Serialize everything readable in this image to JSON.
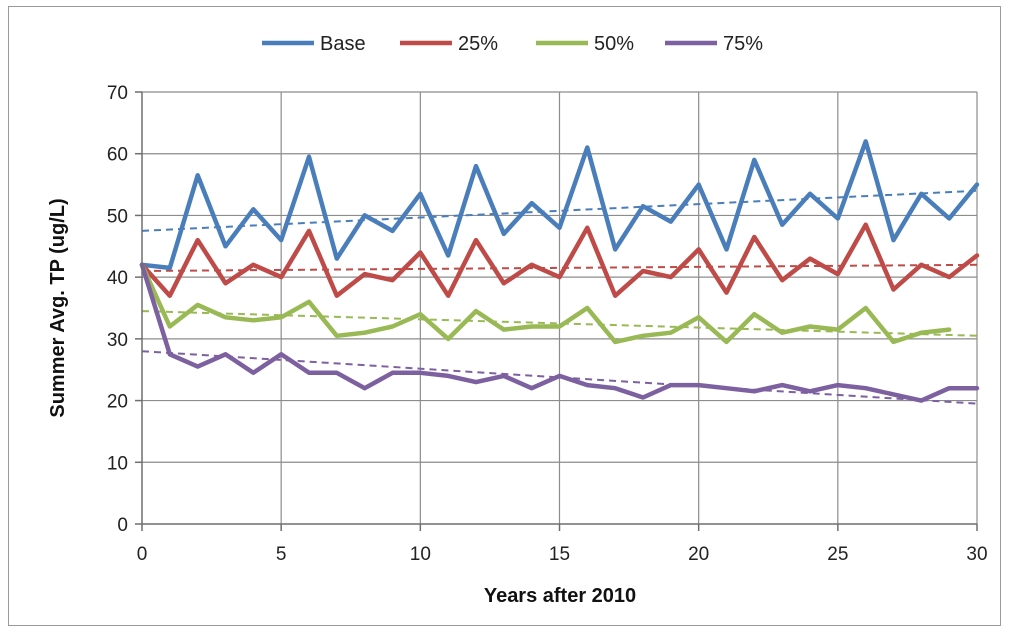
{
  "chart_data": {
    "type": "line",
    "title": "",
    "xlabel": "Years after 2010",
    "ylabel": "Summer Avg. TP (ug/L)",
    "xlim": [
      0,
      30
    ],
    "ylim": [
      0,
      70
    ],
    "xticks": [
      0,
      5,
      10,
      15,
      20,
      25,
      30
    ],
    "yticks": [
      0,
      10,
      20,
      30,
      40,
      50,
      60,
      70
    ],
    "grid": true,
    "legend_position": "top",
    "series": [
      {
        "name": "Base",
        "color": "#4a7ebb",
        "x": [
          0,
          1,
          2,
          3,
          4,
          5,
          6,
          7,
          8,
          9,
          10,
          11,
          12,
          13,
          14,
          15,
          16,
          17,
          18,
          19,
          20,
          21,
          22,
          23,
          24,
          25,
          26,
          27,
          28,
          29,
          30
        ],
        "values": [
          42,
          41.5,
          56.5,
          45,
          51,
          46,
          59.5,
          43,
          50,
          47.5,
          53.5,
          43.5,
          58,
          47,
          52,
          48,
          61,
          44.5,
          51.5,
          49,
          55,
          44.5,
          59,
          48.5,
          53.5,
          49.5,
          62,
          46,
          53.5,
          49.5,
          55
        ],
        "trend": [
          47.5,
          54
        ]
      },
      {
        "name": "25%",
        "color": "#be4b48",
        "x": [
          0,
          1,
          2,
          3,
          4,
          5,
          6,
          7,
          8,
          9,
          10,
          11,
          12,
          13,
          14,
          15,
          16,
          17,
          18,
          19,
          20,
          21,
          22,
          23,
          24,
          25,
          26,
          27,
          28,
          29,
          30
        ],
        "values": [
          42,
          37,
          46,
          39,
          42,
          40,
          47.5,
          37,
          40.5,
          39.5,
          44,
          37,
          46,
          39,
          42,
          40,
          48,
          37,
          41,
          40,
          44.5,
          37.5,
          46.5,
          39.5,
          43,
          40.5,
          48.5,
          38,
          42,
          40,
          43.5
        ],
        "trend": [
          41,
          42
        ]
      },
      {
        "name": "50%",
        "color": "#98b954",
        "x": [
          0,
          1,
          2,
          3,
          4,
          5,
          6,
          7,
          8,
          9,
          10,
          11,
          12,
          13,
          14,
          15,
          16,
          17,
          18,
          19,
          20,
          21,
          22,
          23,
          24,
          25,
          26,
          27,
          28,
          29
        ],
        "values": [
          42,
          32,
          35.5,
          33.5,
          33,
          33.5,
          36,
          30.5,
          31,
          32,
          34,
          30,
          34.5,
          31.5,
          32,
          32,
          35,
          29.5,
          30.5,
          31,
          33.5,
          29.5,
          34,
          31,
          32,
          31.5,
          35,
          29.5,
          31,
          31.5
        ],
        "trend": [
          34.5,
          30.5
        ]
      },
      {
        "name": "75%",
        "color": "#7d60a0",
        "x": [
          0,
          1,
          2,
          3,
          4,
          5,
          6,
          7,
          8,
          9,
          10,
          11,
          12,
          13,
          14,
          15,
          16,
          17,
          18,
          19,
          20,
          21,
          22,
          23,
          24,
          25,
          26,
          27,
          28,
          29,
          30
        ],
        "values": [
          42,
          27.5,
          25.5,
          27.5,
          24.5,
          27.5,
          24.5,
          24.5,
          22,
          24.5,
          24.5,
          24,
          23,
          24,
          22,
          24,
          22.5,
          22,
          20.5,
          22.5,
          22.5,
          22,
          21.5,
          22.5,
          21.5,
          22.5,
          22,
          21,
          20,
          22,
          22
        ],
        "trend": [
          28,
          19.5
        ]
      }
    ]
  }
}
